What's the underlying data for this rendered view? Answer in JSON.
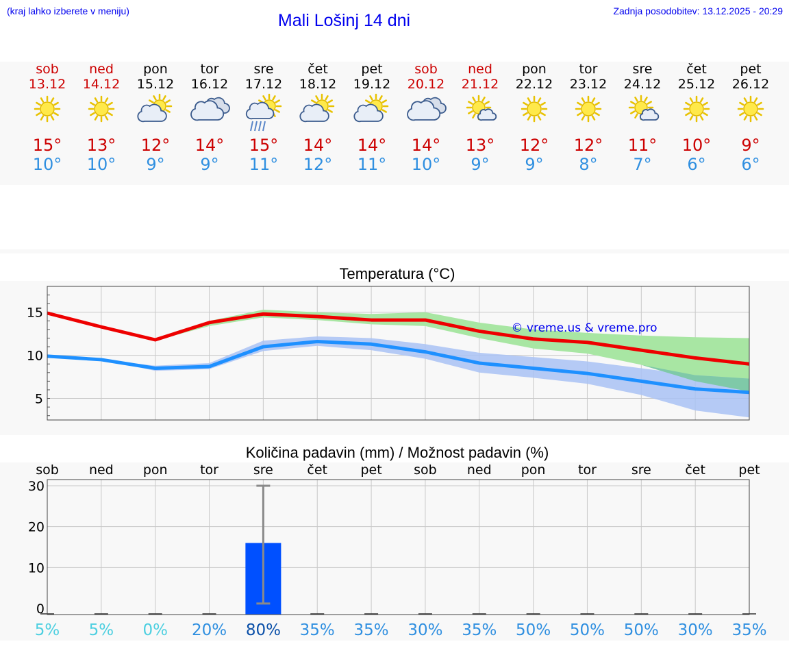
{
  "header": {
    "hint": "(kraj lahko izberete v meniju)",
    "title": "Mali Lošinj 14 dni",
    "updated": "Zadnja posodobitev: 13.12.2025 - 20:29"
  },
  "colors": {
    "max_temp": "#cc0000",
    "min_temp": "#2f8fe0",
    "max_line": "#ee0000",
    "min_line": "#1e90ff",
    "max_band": "#a8e6a3",
    "min_band": "#a9c2f5",
    "overlap_band": "#7fc9a8",
    "bar": "#0050ff",
    "link": "#0000ee"
  },
  "days": [
    {
      "name": "sob",
      "date": "13.12",
      "weekend": true,
      "icon": "sun-icon",
      "max": "15°",
      "min": "10°"
    },
    {
      "name": "ned",
      "date": "14.12",
      "weekend": true,
      "icon": "sun-icon",
      "max": "13°",
      "min": "10°"
    },
    {
      "name": "pon",
      "date": "15.12",
      "weekend": false,
      "icon": "partly-cloudy-icon",
      "max": "12°",
      "min": "9°"
    },
    {
      "name": "tor",
      "date": "16.12",
      "weekend": false,
      "icon": "cloudy-icon",
      "max": "14°",
      "min": "9°"
    },
    {
      "name": "sre",
      "date": "17.12",
      "weekend": false,
      "icon": "sun-rain-icon",
      "max": "15°",
      "min": "11°"
    },
    {
      "name": "čet",
      "date": "18.12",
      "weekend": false,
      "icon": "partly-cloudy-icon",
      "max": "14°",
      "min": "12°"
    },
    {
      "name": "pet",
      "date": "19.12",
      "weekend": false,
      "icon": "partly-cloudy-icon",
      "max": "14°",
      "min": "11°"
    },
    {
      "name": "sob",
      "date": "20.12",
      "weekend": true,
      "icon": "cloudy-icon",
      "max": "14°",
      "min": "10°"
    },
    {
      "name": "ned",
      "date": "21.12",
      "weekend": true,
      "icon": "sun-small-cloud-icon",
      "max": "13°",
      "min": "9°"
    },
    {
      "name": "pon",
      "date": "22.12",
      "weekend": false,
      "icon": "sun-icon",
      "max": "12°",
      "min": "9°"
    },
    {
      "name": "tor",
      "date": "23.12",
      "weekend": false,
      "icon": "sun-icon",
      "max": "12°",
      "min": "8°"
    },
    {
      "name": "sre",
      "date": "24.12",
      "weekend": false,
      "icon": "sun-small-cloud-icon",
      "max": "11°",
      "min": "7°"
    },
    {
      "name": "čet",
      "date": "25.12",
      "weekend": false,
      "icon": "sun-icon",
      "max": "10°",
      "min": "6°"
    },
    {
      "name": "pet",
      "date": "26.12",
      "weekend": false,
      "icon": "sun-icon",
      "max": "9°",
      "min": "6°"
    }
  ],
  "chart_data": [
    {
      "type": "line",
      "title": "Temperatura (°C)",
      "watermark": "© vreme.us & vreme.pro",
      "xlabel": "",
      "ylabel": "",
      "x": [
        0,
        1,
        2,
        3,
        4,
        5,
        6,
        7,
        8,
        9,
        10,
        11,
        12,
        13
      ],
      "ylim": [
        2.5,
        18
      ],
      "yticks": [
        5,
        10,
        15
      ],
      "grid": true,
      "series": [
        {
          "name": "max",
          "values": [
            14.9,
            13.3,
            11.8,
            13.8,
            14.8,
            14.5,
            14.1,
            14.1,
            12.8,
            11.9,
            11.5,
            10.6,
            9.7,
            9.0
          ],
          "band_low": [
            14.9,
            13.3,
            11.7,
            13.4,
            14.4,
            14.1,
            13.6,
            13.4,
            12.0,
            10.8,
            10.2,
            8.9,
            7.0,
            5.8
          ],
          "band_high": [
            14.9,
            13.3,
            12.0,
            14.0,
            15.3,
            15.0,
            14.8,
            15.0,
            13.8,
            13.0,
            12.6,
            12.3,
            12.1,
            12.0
          ]
        },
        {
          "name": "min",
          "values": [
            9.9,
            9.5,
            8.5,
            8.7,
            11.0,
            11.6,
            11.3,
            10.4,
            9.1,
            8.5,
            7.9,
            7.0,
            6.1,
            5.7
          ],
          "band_low": [
            9.9,
            9.5,
            8.2,
            8.4,
            10.5,
            11.1,
            10.6,
            9.6,
            8.0,
            7.4,
            6.7,
            5.4,
            3.6,
            2.8
          ],
          "band_high": [
            9.9,
            9.5,
            8.8,
            9.1,
            11.7,
            12.2,
            12.0,
            11.3,
            10.3,
            9.8,
            9.3,
            8.5,
            7.7,
            7.3
          ]
        }
      ]
    },
    {
      "type": "bar",
      "title": "Količina padavin (mm) / Možnost padavin (%)",
      "categories": [
        "sob",
        "ned",
        "pon",
        "tor",
        "sre",
        "čet",
        "pet",
        "sob",
        "ned",
        "pon",
        "tor",
        "sre",
        "čet",
        "pet"
      ],
      "values": [
        0,
        0,
        0,
        0,
        16,
        0,
        0,
        0,
        0,
        0,
        0,
        0,
        0,
        0
      ],
      "error_low": [
        0,
        0,
        0,
        0,
        1.2,
        0,
        0,
        0,
        0,
        0,
        0,
        0,
        0,
        0
      ],
      "error_high": [
        0,
        0,
        0,
        0,
        30,
        0,
        0,
        0,
        0,
        0,
        0,
        0,
        0,
        0
      ],
      "probability": [
        "5%",
        "5%",
        "0%",
        "20%",
        "80%",
        "35%",
        "35%",
        "30%",
        "35%",
        "50%",
        "50%",
        "50%",
        "30%",
        "35%"
      ],
      "probability_values": [
        5,
        5,
        0,
        20,
        80,
        35,
        35,
        30,
        35,
        50,
        50,
        50,
        30,
        35
      ],
      "ylim": [
        -1.5,
        31.5
      ],
      "yticks": [
        0,
        10,
        20,
        30
      ],
      "grid": true
    }
  ]
}
